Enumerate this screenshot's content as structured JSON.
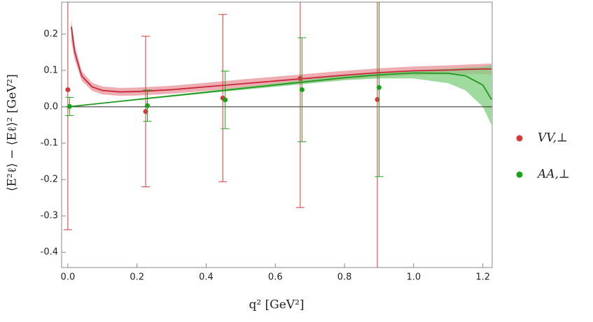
{
  "chart_data": {
    "type": "scatter",
    "xlabel": "q² [GeV²]",
    "ylabel": "⟨E²ℓ⟩ − ⟨Eℓ⟩² [GeV²]",
    "xlim": [
      -0.018,
      1.227
    ],
    "ylim": [
      -0.442,
      0.288
    ],
    "xticks": [
      {
        "value": 0,
        "label": "0.0"
      },
      0.2,
      0.4,
      0.6,
      0.8,
      {
        "value": 1,
        "label": "1.0"
      },
      1.2
    ],
    "yticks": [
      -0.4,
      -0.3,
      -0.2,
      -0.1,
      {
        "value": 0,
        "label": "0.0"
      },
      0.1,
      0.2
    ],
    "zero_line": true,
    "series": [
      {
        "name": "VV,⊥",
        "color": "#d43a3a",
        "x": [
          0.0,
          0.225,
          0.448,
          0.672,
          0.895
        ],
        "values": [
          0.047,
          -0.013,
          0.024,
          0.078,
          0.02
        ],
        "errors": [
          0.385,
          0.207,
          0.23,
          0.355,
          0.5
        ]
      },
      {
        "name": "AA,⊥",
        "color": "#1aa31a",
        "x": [
          0.005,
          0.23,
          0.455,
          0.677,
          0.9
        ],
        "values": [
          0.001,
          0.003,
          0.019,
          0.047,
          0.053
        ],
        "errors": [
          0.025,
          0.043,
          0.079,
          0.143,
          0.245
        ]
      }
    ],
    "curves": [
      {
        "color": "#c8283a",
        "band_color": "#e8909a",
        "x": [
          0.01,
          0.02,
          0.04,
          0.07,
          0.1,
          0.15,
          0.2,
          0.3,
          0.4,
          0.5,
          0.6,
          0.7,
          0.8,
          0.9,
          1.0,
          1.1,
          1.15,
          1.2,
          1.225
        ],
        "values": [
          0.22,
          0.15,
          0.085,
          0.055,
          0.045,
          0.041,
          0.042,
          0.047,
          0.055,
          0.063,
          0.071,
          0.079,
          0.087,
          0.094,
          0.099,
          0.101,
          0.103,
          0.104,
          0.104
        ],
        "band_lower": [
          0.18,
          0.13,
          0.072,
          0.044,
          0.034,
          0.03,
          0.031,
          0.036,
          0.044,
          0.051,
          0.059,
          0.067,
          0.075,
          0.082,
          0.087,
          0.089,
          0.09,
          0.09,
          0.089
        ],
        "band_upper": [
          0.24,
          0.17,
          0.098,
          0.066,
          0.056,
          0.052,
          0.053,
          0.058,
          0.066,
          0.075,
          0.083,
          0.091,
          0.099,
          0.106,
          0.111,
          0.114,
          0.116,
          0.118,
          0.119
        ]
      },
      {
        "color": "#1f9a1f",
        "band_color": "#7fcf7f",
        "x": [
          0.0,
          0.2,
          0.4,
          0.6,
          0.8,
          0.9,
          1.0,
          1.1,
          1.15,
          1.2,
          1.225
        ],
        "values": [
          0.0,
          0.02,
          0.04,
          0.06,
          0.08,
          0.088,
          0.093,
          0.092,
          0.085,
          0.06,
          0.02
        ],
        "band_lower": [
          0.0,
          0.018,
          0.037,
          0.055,
          0.073,
          0.078,
          0.078,
          0.065,
          0.045,
          0.0,
          -0.05
        ],
        "band_upper": [
          0.0,
          0.022,
          0.043,
          0.065,
          0.087,
          0.095,
          0.1,
          0.105,
          0.108,
          0.11,
          0.115
        ]
      }
    ]
  }
}
